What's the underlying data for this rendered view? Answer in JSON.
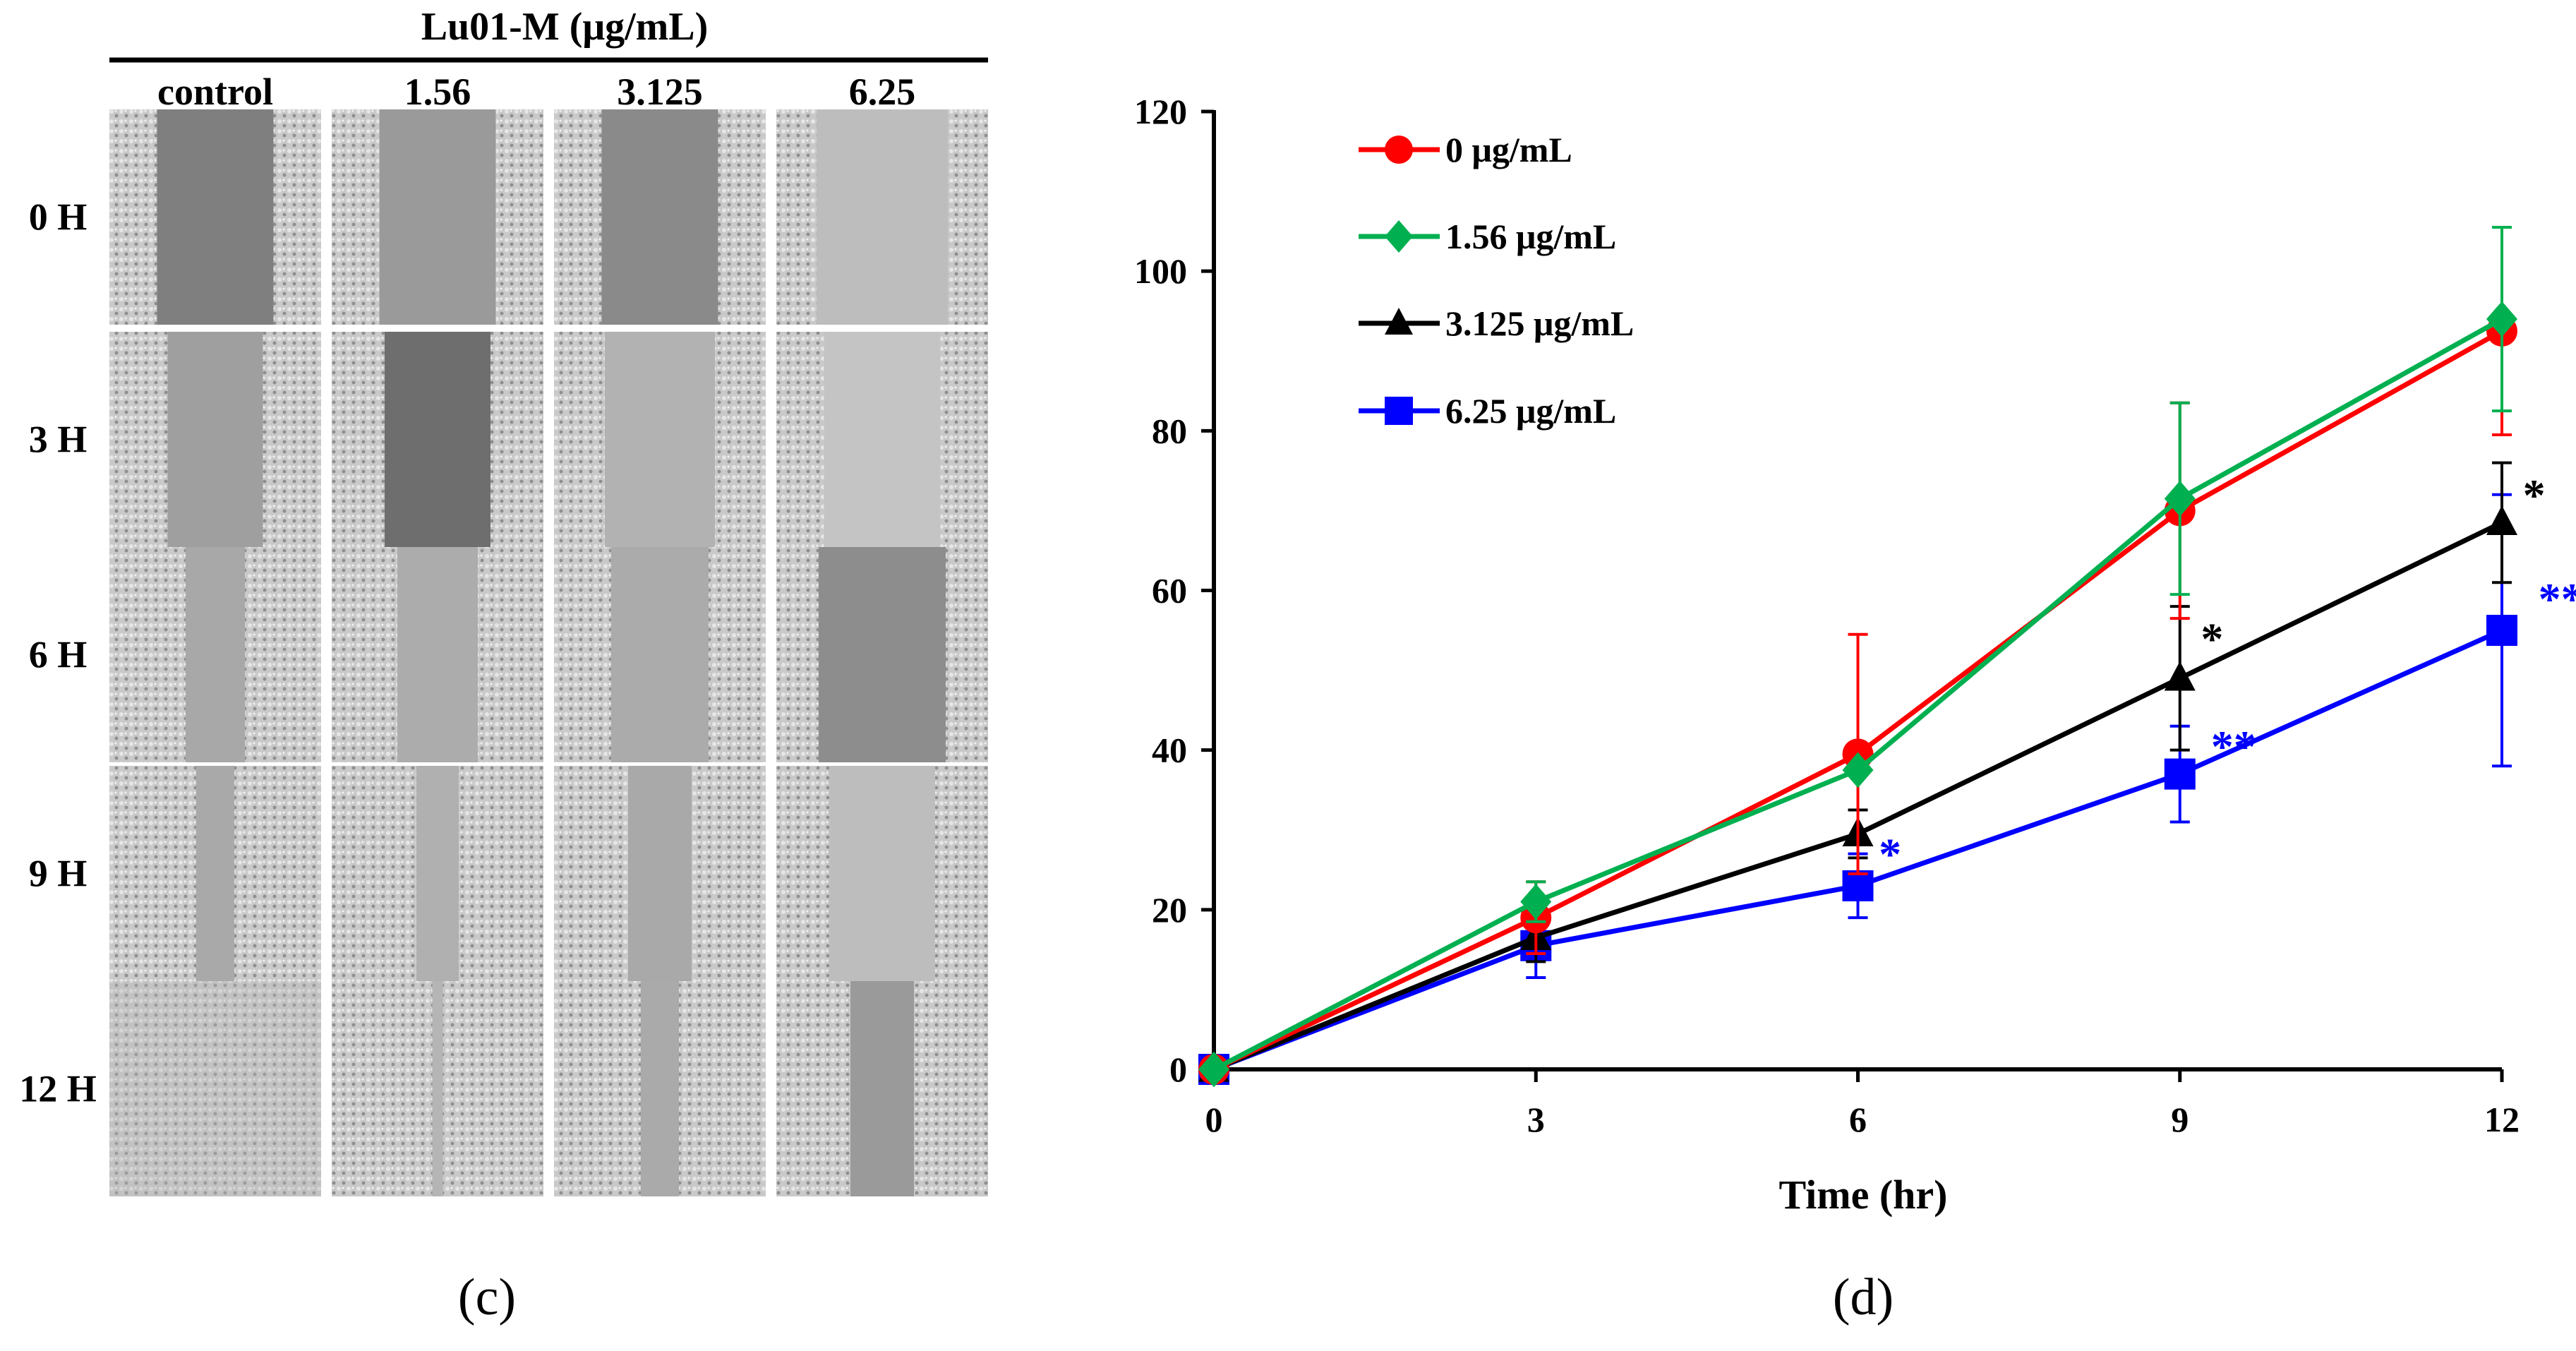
{
  "panel_c": {
    "title": "Lu01-M (μg/mL)",
    "columns": [
      "control",
      "1.56",
      "3.125",
      "6.25"
    ],
    "rows": [
      "0 H",
      "3 H",
      "6 H",
      "9 H",
      "12 H"
    ],
    "wound_gap_fraction": [
      [
        0.55,
        0.55,
        0.55,
        0.62
      ],
      [
        0.45,
        0.5,
        0.52,
        0.55
      ],
      [
        0.28,
        0.38,
        0.46,
        0.6
      ],
      [
        0.18,
        0.2,
        0.3,
        0.5
      ],
      [
        0.0,
        0.05,
        0.18,
        0.3
      ]
    ],
    "tone": [
      [
        "#7f7f7f",
        "#9a9a9a",
        "#8a8a8a",
        "#bdbdbd"
      ],
      [
        "#9f9f9f",
        "#6e6e6e",
        "#b2b2b2",
        "#c4c4c4"
      ],
      [
        "#a8a8a8",
        "#acacac",
        "#ababab",
        "#8d8d8d"
      ],
      [
        "#a9a9a9",
        "#b0b0b0",
        "#a9a9a9",
        "#bdbdbd"
      ],
      [
        "#b5b5b5",
        "#b5b5b5",
        "#aaaaaa",
        "#9a9a9a"
      ]
    ],
    "letter": "(c)"
  },
  "chart_data": {
    "type": "line",
    "title": "",
    "xlabel": "Time (hr)",
    "ylabel": "",
    "x": [
      0,
      3,
      6,
      9,
      12
    ],
    "xlim": [
      0,
      12
    ],
    "ylim": [
      0,
      120
    ],
    "xticks": [
      0,
      3,
      6,
      9,
      12
    ],
    "yticks": [
      0,
      20,
      40,
      60,
      80,
      100,
      120
    ],
    "legend_position": "top-left",
    "series": [
      {
        "name": "0 μg/mL",
        "color": "#ff0000",
        "marker": "circle",
        "values": [
          0,
          19,
          39.5,
          70,
          92.5
        ],
        "errors": [
          0,
          4.5,
          15,
          13.5,
          13
        ]
      },
      {
        "name": "1.56 μg/mL",
        "color": "#00b050",
        "marker": "diamond",
        "values": [
          0,
          21,
          37.5,
          71.5,
          94
        ],
        "errors": [
          0,
          2.5,
          0,
          12,
          11.5
        ]
      },
      {
        "name": "3.125 μg/mL",
        "color": "#000000",
        "marker": "triangle",
        "values": [
          0,
          16.5,
          29.5,
          49,
          68.5
        ],
        "errors": [
          0,
          3,
          3,
          9,
          7.5
        ]
      },
      {
        "name": "6.25 μg/mL",
        "color": "#0000ff",
        "marker": "square",
        "values": [
          0,
          15.5,
          23,
          37,
          55
        ],
        "errors": [
          0,
          4,
          4,
          6,
          17
        ]
      }
    ],
    "annotations": [
      {
        "text": "*",
        "x": 9.3,
        "y": 54,
        "color": "#000000",
        "series": "3.125 μg/mL"
      },
      {
        "text": "*",
        "x": 12.3,
        "y": 72,
        "color": "#000000",
        "series": "3.125 μg/mL"
      },
      {
        "text": "*",
        "x": 6.3,
        "y": 27,
        "color": "#0000ff",
        "series": "6.25 μg/mL"
      },
      {
        "text": "**",
        "x": 9.5,
        "y": 40.5,
        "color": "#0000ff",
        "series": "6.25 μg/mL"
      },
      {
        "text": "**",
        "x": 12.55,
        "y": 59,
        "color": "#0000ff",
        "series": "6.25 μg/mL"
      }
    ],
    "letter": "(d)"
  }
}
